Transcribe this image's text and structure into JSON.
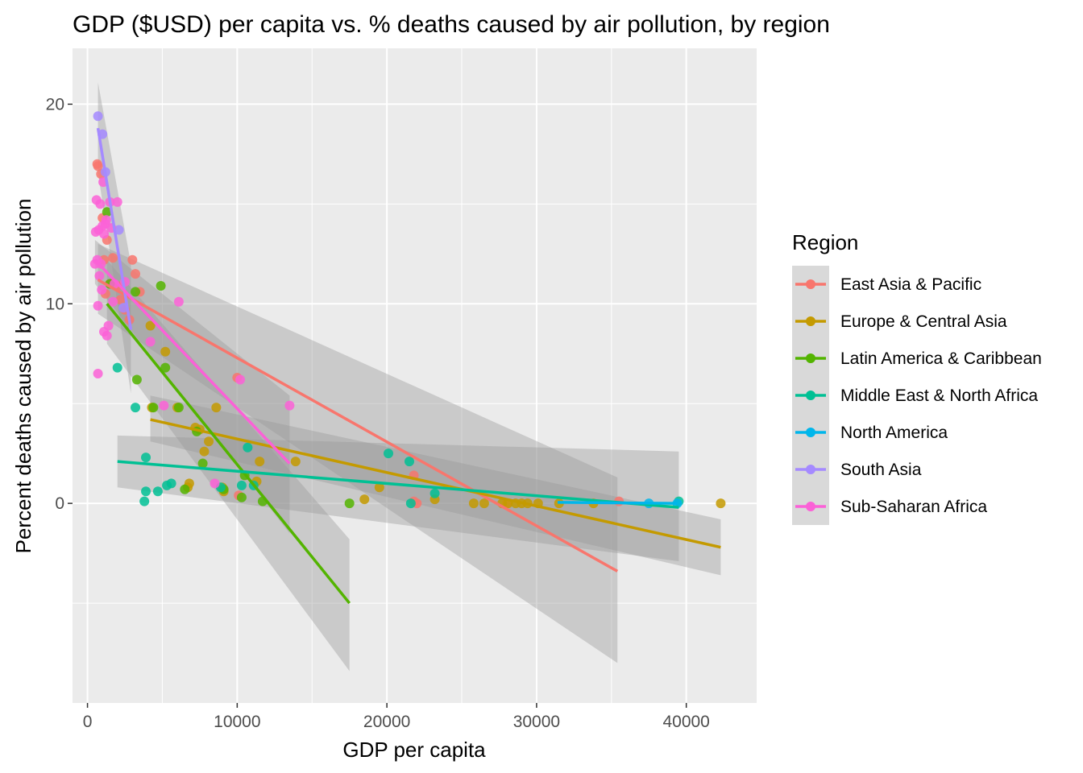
{
  "chart_data": {
    "type": "scatter",
    "title": "GDP ($USD) per capita vs. % deaths caused by air pollution, by region",
    "xlabel": "GDP per capita",
    "ylabel": "Percent deaths caused by air pollution",
    "xlim": [
      -1000,
      44700
    ],
    "ylim": [
      -10.0,
      22.8
    ],
    "x_ticks": [
      0,
      10000,
      20000,
      30000,
      40000
    ],
    "y_ticks": [
      0,
      10,
      20
    ],
    "grid": true,
    "legend": {
      "title": "Region",
      "position": "right"
    },
    "series": [
      {
        "name": "East Asia & Pacific",
        "color": "#F8766D",
        "points": [
          [
            650,
            17.0
          ],
          [
            700,
            16.9
          ],
          [
            900,
            16.5
          ],
          [
            1000,
            14.3
          ],
          [
            1100,
            12.2
          ],
          [
            1300,
            13.2
          ],
          [
            1500,
            11.0
          ],
          [
            1700,
            12.3
          ],
          [
            2000,
            10.9
          ],
          [
            2200,
            10.2
          ],
          [
            2500,
            9.7
          ],
          [
            3000,
            12.2
          ],
          [
            3200,
            11.5
          ],
          [
            3500,
            10.6
          ],
          [
            1200,
            10.5
          ],
          [
            2800,
            9.2
          ],
          [
            10000,
            6.3
          ],
          [
            10100,
            0.4
          ],
          [
            21800,
            1.4
          ],
          [
            21800,
            0.1
          ],
          [
            22000,
            0.0
          ],
          [
            28000,
            0.0
          ],
          [
            35500,
            0.1
          ]
        ],
        "trend": {
          "x": [
            700,
            35400
          ],
          "y": [
            11.2,
            -3.4
          ]
        },
        "band": {
          "x": [
            700,
            35400
          ],
          "lower": [
            9.5,
            -8.0
          ],
          "upper": [
            13.0,
            1.3
          ]
        }
      },
      {
        "name": "Europe & Central Asia",
        "color": "#C49A00",
        "points": [
          [
            4200,
            8.9
          ],
          [
            4300,
            4.8
          ],
          [
            5200,
            7.6
          ],
          [
            6000,
            4.8
          ],
          [
            6700,
            0.8
          ],
          [
            6800,
            1.0
          ],
          [
            7200,
            3.8
          ],
          [
            7500,
            3.7
          ],
          [
            7800,
            2.6
          ],
          [
            8100,
            3.1
          ],
          [
            8600,
            4.8
          ],
          [
            9000,
            0.8
          ],
          [
            9100,
            0.6
          ],
          [
            11300,
            1.1
          ],
          [
            11500,
            2.1
          ],
          [
            13900,
            2.1
          ],
          [
            18500,
            0.2
          ],
          [
            19500,
            0.8
          ],
          [
            23200,
            0.2
          ],
          [
            25800,
            0.0
          ],
          [
            26500,
            0.0
          ],
          [
            27700,
            0.0
          ],
          [
            28100,
            0.0
          ],
          [
            28600,
            0.0
          ],
          [
            29000,
            0.0
          ],
          [
            29400,
            0.0
          ],
          [
            30100,
            0.0
          ],
          [
            31500,
            0.0
          ],
          [
            33800,
            0.0
          ],
          [
            42300,
            0.0
          ]
        ],
        "trend": {
          "x": [
            4200,
            42300
          ],
          "y": [
            4.2,
            -2.2
          ]
        },
        "band": {
          "x": [
            4200,
            42300
          ],
          "lower": [
            3.1,
            -3.6
          ],
          "upper": [
            5.4,
            -0.8
          ]
        }
      },
      {
        "name": "Latin America & Caribbean",
        "color": "#53B400",
        "points": [
          [
            1300,
            14.6
          ],
          [
            1500,
            11.0
          ],
          [
            3200,
            10.6
          ],
          [
            3300,
            6.2
          ],
          [
            4400,
            4.8
          ],
          [
            4900,
            10.9
          ],
          [
            5200,
            6.8
          ],
          [
            6100,
            4.8
          ],
          [
            6500,
            0.7
          ],
          [
            7300,
            3.6
          ],
          [
            7700,
            2.0
          ],
          [
            9100,
            0.7
          ],
          [
            10300,
            0.3
          ],
          [
            10500,
            1.4
          ],
          [
            11700,
            0.1
          ],
          [
            17500,
            0.0
          ]
        ],
        "trend": {
          "x": [
            1300,
            17500
          ],
          "y": [
            10.0,
            -5.0
          ]
        },
        "band": {
          "x": [
            1300,
            17500
          ],
          "lower": [
            8.0,
            -8.4
          ],
          "upper": [
            12.2,
            -1.8
          ]
        }
      },
      {
        "name": "Middle East & North Africa",
        "color": "#00C094",
        "points": [
          [
            2000,
            6.8
          ],
          [
            3200,
            4.8
          ],
          [
            3800,
            0.1
          ],
          [
            3900,
            2.3
          ],
          [
            3900,
            0.6
          ],
          [
            4700,
            0.6
          ],
          [
            5300,
            0.9
          ],
          [
            5600,
            1.0
          ],
          [
            8900,
            0.8
          ],
          [
            10300,
            0.9
          ],
          [
            10700,
            2.8
          ],
          [
            11100,
            0.9
          ],
          [
            20100,
            2.5
          ],
          [
            21500,
            2.1
          ],
          [
            21600,
            0.0
          ],
          [
            23200,
            0.5
          ],
          [
            39500,
            0.1
          ]
        ],
        "trend": {
          "x": [
            2000,
            39500
          ],
          "y": [
            2.1,
            -0.2
          ]
        },
        "band": {
          "x": [
            2000,
            39500
          ],
          "lower": [
            0.8,
            -2.9
          ],
          "upper": [
            3.4,
            2.6
          ]
        }
      },
      {
        "name": "North America",
        "color": "#00B6EB",
        "points": [
          [
            37500,
            0.0
          ],
          [
            39400,
            0.0
          ]
        ],
        "trend": {
          "x": [
            31400,
            39400
          ],
          "y": [
            0.05,
            0.0
          ]
        }
      },
      {
        "name": "South Asia",
        "color": "#A58AFF",
        "points": [
          [
            700,
            19.4
          ],
          [
            1000,
            18.5
          ],
          [
            1200,
            16.6
          ],
          [
            2100,
            13.7
          ],
          [
            2400,
            9.8
          ]
        ],
        "trend": {
          "x": [
            700,
            2900
          ],
          "y": [
            18.8,
            8.7
          ]
        },
        "band": {
          "x": [
            700,
            2900
          ],
          "lower": [
            16.6,
            5.5
          ],
          "upper": [
            21.1,
            12.0
          ]
        }
      },
      {
        "name": "Sub-Saharan Africa",
        "color": "#FB61D7",
        "points": [
          [
            500,
            12.0
          ],
          [
            550,
            13.6
          ],
          [
            600,
            15.2
          ],
          [
            650,
            12.2
          ],
          [
            700,
            9.9
          ],
          [
            700,
            6.5
          ],
          [
            750,
            13.7
          ],
          [
            800,
            11.4
          ],
          [
            850,
            15.0
          ],
          [
            900,
            12.0
          ],
          [
            950,
            10.7
          ],
          [
            1000,
            13.9
          ],
          [
            1050,
            16.1
          ],
          [
            1100,
            13.5
          ],
          [
            1100,
            8.6
          ],
          [
            1200,
            14.0
          ],
          [
            1250,
            14.2
          ],
          [
            1300,
            8.4
          ],
          [
            1400,
            8.9
          ],
          [
            1500,
            15.1
          ],
          [
            1600,
            13.8
          ],
          [
            1700,
            10.1
          ],
          [
            1800,
            11.0
          ],
          [
            2000,
            15.1
          ],
          [
            2500,
            11.1
          ],
          [
            4200,
            8.1
          ],
          [
            5100,
            4.9
          ],
          [
            6100,
            10.1
          ],
          [
            8500,
            1.0
          ],
          [
            10200,
            6.2
          ],
          [
            13500,
            4.9
          ]
        ],
        "trend": {
          "x": [
            500,
            13500
          ],
          "y": [
            12.2,
            2.0
          ]
        },
        "band": {
          "x": [
            500,
            13500
          ],
          "lower": [
            11.0,
            -1.5
          ],
          "upper": [
            13.2,
            5.4
          ]
        }
      }
    ]
  }
}
